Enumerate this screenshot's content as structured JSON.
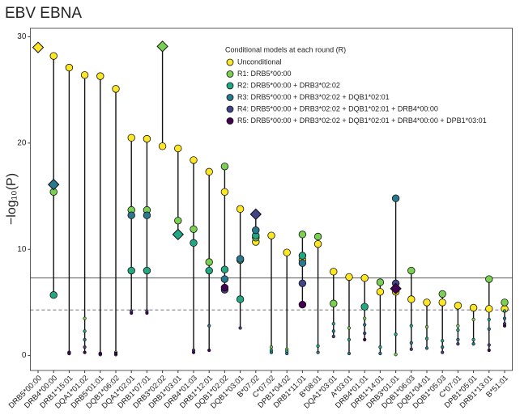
{
  "chart_data": {
    "type": "dot-range",
    "title": "EBV EBNA",
    "ylabel": "−log₁₀(P)",
    "legend_title": "Conditional models at each round (R)",
    "categories": [
      "DRB5*00:00",
      "DRB4*00:00",
      "DRB1*15:01",
      "DQA1*01:02",
      "DRB5*01:01",
      "DQB1*06:02",
      "DQA1*02:01",
      "DRB1*07:01",
      "DRB3*02:02",
      "DRB1*03:01",
      "DRB4*01:03",
      "DRB1*12:01",
      "DQB1*02:02",
      "DQB1*03:01",
      "B*07:02",
      "C*07:02",
      "DPB1*04:02",
      "DRB1*11:01",
      "B*08:01",
      "DQA1*03:01",
      "A*03:01",
      "DRB4*01:01",
      "DRB1*14:01",
      "DRB3*01:01",
      "DQB1*06:03",
      "DQB1*04:01",
      "DQB1*05:03",
      "C*07:01",
      "DPB1*05:01",
      "DRB1*13:01",
      "B*51:01"
    ],
    "series": [
      {
        "name": "Unconditional",
        "color": "#FDE725",
        "lead": 0,
        "values": [
          29.0,
          28.2,
          27.1,
          26.4,
          26.3,
          25.1,
          20.5,
          20.4,
          19.7,
          19.5,
          18.4,
          17.3,
          15.4,
          13.8,
          10.7,
          11.3,
          9.7,
          9.0,
          10.5,
          7.9,
          7.4,
          7.3,
          6.0,
          6.0,
          5.3,
          5.0,
          5.0,
          4.7,
          4.5,
          4.4,
          4.4
        ]
      },
      {
        "name": "R1: DRB5*00:00",
        "color": "#7AD151",
        "lead": 8,
        "values": [
          null,
          15.4,
          0.3,
          3.5,
          0.2,
          0.3,
          13.7,
          13.7,
          29.1,
          12.7,
          11.9,
          8.8,
          17.8,
          9.0,
          11.1,
          0.8,
          0.6,
          11.4,
          11.2,
          4.9,
          2.6,
          3.5,
          6.9,
          0.1,
          8.0,
          2.7,
          5.8,
          2.8,
          3.4,
          7.2,
          5.0
        ]
      },
      {
        "name": "R2: DRB5*00:00 + DRB3*02:02",
        "color": "#22A884",
        "lead": 9,
        "values": [
          null,
          5.7,
          0.2,
          2.3,
          0.2,
          0.2,
          8.0,
          8.0,
          null,
          11.4,
          10.6,
          8.0,
          8.1,
          5.3,
          11.3,
          0.5,
          0.4,
          9.4,
          0.9,
          3.0,
          1.5,
          4.6,
          0.8,
          2.0,
          2.8,
          1.6,
          1.4,
          2.4,
          1.5,
          3.4,
          4.2
        ]
      },
      {
        "name": "R3: DRB5*00:00 + DRB3*02:02 + DQB1*02:01",
        "color": "#2A788E",
        "lead": 1,
        "values": [
          null,
          16.1,
          0.2,
          1.5,
          0.1,
          0.1,
          13.2,
          13.2,
          null,
          null,
          null,
          2.8,
          7.2,
          9.1,
          11.8,
          0.3,
          0.2,
          8.7,
          0.3,
          2.3,
          0.2,
          2.9,
          0.2,
          14.8,
          1.2,
          0.7,
          0.8,
          1.5,
          1.1,
          2.5,
          3.5
        ]
      },
      {
        "name": "R4: DRB5*00:00 + DRB3*02:02 + DQB1*02:01 + DRB4*00:00",
        "color": "#414487",
        "lead": 14,
        "values": [
          null,
          null,
          0.2,
          0.8,
          0.1,
          0.1,
          4.2,
          4.2,
          null,
          null,
          0.5,
          null,
          6.2,
          2.6,
          13.3,
          null,
          null,
          6.8,
          null,
          1.8,
          null,
          2.1,
          null,
          6.8,
          0.6,
          null,
          0.3,
          1.1,
          null,
          1.0,
          3.0
        ]
      },
      {
        "name": "R5: DRB5*00:00 + DRB3*02:02 + DQB1*02:01 + DRB4*00:00 + DPB1*03:01",
        "color": "#440154",
        "lead": 23,
        "values": [
          null,
          null,
          0.3,
          0.3,
          0.2,
          0.2,
          4.0,
          4.0,
          null,
          null,
          0.3,
          0.5,
          6.4,
          null,
          null,
          null,
          null,
          4.8,
          null,
          null,
          null,
          1.5,
          null,
          6.3,
          null,
          null,
          null,
          null,
          null,
          0.5,
          2.8
        ]
      }
    ],
    "ylim": [
      -1.4,
      30.8
    ],
    "yticks": [
      0,
      10,
      20,
      30
    ],
    "hlines": [
      {
        "value": 7.3,
        "style": "solid"
      },
      {
        "value": 4.3,
        "style": "dashed"
      }
    ]
  }
}
